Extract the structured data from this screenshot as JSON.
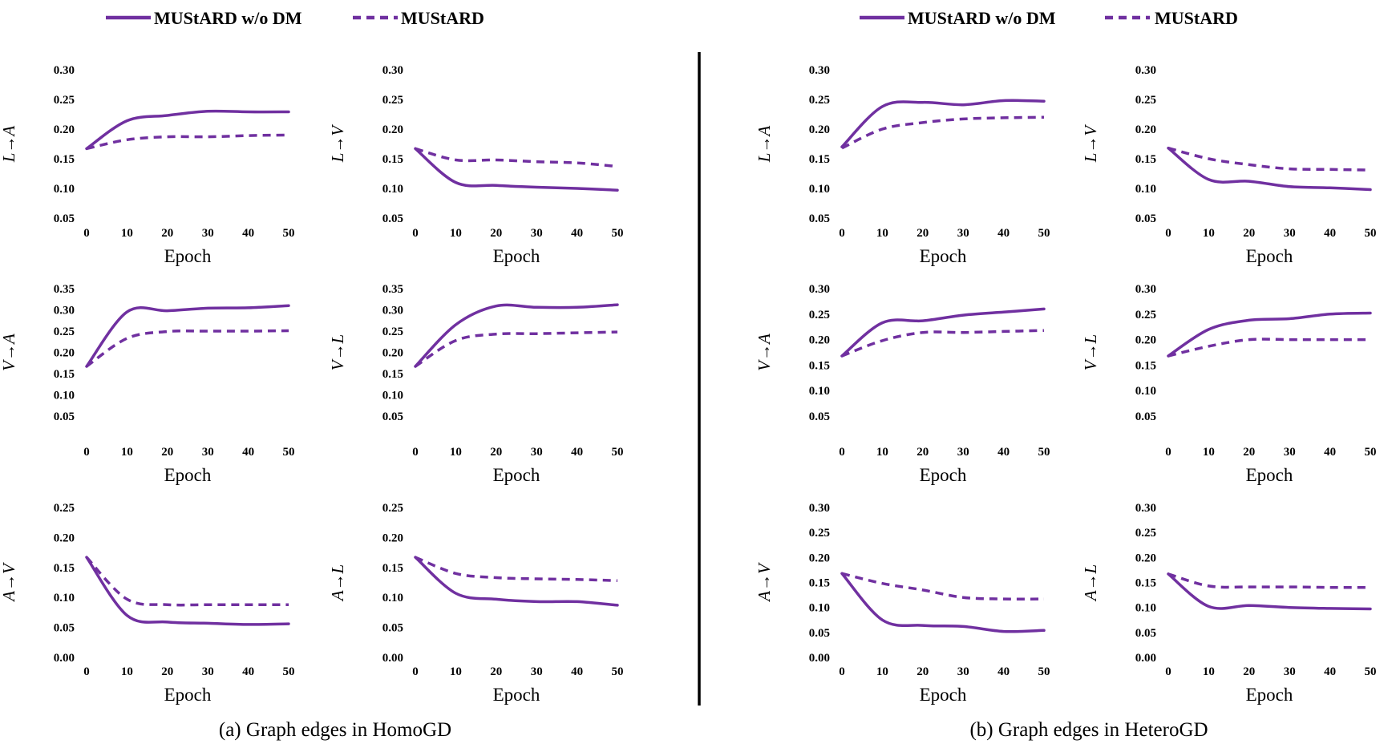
{
  "legend": {
    "solid": "MUStARD w/o DM",
    "dashed": "MUStARD"
  },
  "colors": {
    "series": "#7030a0"
  },
  "captions": {
    "a": "(a) Graph edges in HomoGD",
    "b": "(b) Graph edges in HeteroGD"
  },
  "chart_data": [
    {
      "type": "line",
      "group": "a",
      "ylabel": "L→A",
      "xlabel": "Epoch",
      "x": [
        0,
        10,
        20,
        30,
        40,
        50
      ],
      "ylim": [
        0.05,
        0.3
      ],
      "yticks": [
        "0.05",
        "0.10",
        "0.15",
        "0.20",
        "0.25",
        "0.30"
      ],
      "series": [
        {
          "name": "MUStARD w/o DM",
          "style": "solid",
          "values": [
            0.167,
            0.214,
            0.223,
            0.23,
            0.229,
            0.229
          ]
        },
        {
          "name": "MUStARD",
          "style": "dashed",
          "values": [
            0.167,
            0.182,
            0.187,
            0.187,
            0.189,
            0.19
          ]
        }
      ]
    },
    {
      "type": "line",
      "group": "a",
      "ylabel": "L→V",
      "xlabel": "Epoch",
      "x": [
        0,
        10,
        20,
        30,
        40,
        50
      ],
      "ylim": [
        0.05,
        0.3
      ],
      "yticks": [
        "0.05",
        "0.10",
        "0.15",
        "0.20",
        "0.25",
        "0.30"
      ],
      "series": [
        {
          "name": "MUStARD w/o DM",
          "style": "solid",
          "values": [
            0.167,
            0.11,
            0.105,
            0.102,
            0.1,
            0.097
          ]
        },
        {
          "name": "MUStARD",
          "style": "dashed",
          "values": [
            0.167,
            0.148,
            0.148,
            0.145,
            0.143,
            0.137
          ]
        }
      ]
    },
    {
      "type": "line",
      "group": "b",
      "ylabel": "L→A",
      "xlabel": "Epoch",
      "x": [
        0,
        10,
        20,
        30,
        40,
        50
      ],
      "ylim": [
        0.05,
        0.3
      ],
      "yticks": [
        "0.05",
        "0.10",
        "0.15",
        "0.20",
        "0.25",
        "0.30"
      ],
      "series": [
        {
          "name": "MUStARD w/o DM",
          "style": "solid",
          "values": [
            0.17,
            0.238,
            0.245,
            0.241,
            0.248,
            0.247
          ]
        },
        {
          "name": "MUStARD",
          "style": "dashed",
          "values": [
            0.168,
            0.2,
            0.211,
            0.217,
            0.219,
            0.22
          ]
        }
      ]
    },
    {
      "type": "line",
      "group": "b",
      "ylabel": "L→V",
      "xlabel": "Epoch",
      "x": [
        0,
        10,
        20,
        30,
        40,
        50
      ],
      "ylim": [
        0.05,
        0.3
      ],
      "yticks": [
        "0.05",
        "0.10",
        "0.15",
        "0.20",
        "0.25",
        "0.30"
      ],
      "series": [
        {
          "name": "MUStARD w/o DM",
          "style": "solid",
          "values": [
            0.168,
            0.115,
            0.112,
            0.103,
            0.101,
            0.098
          ]
        },
        {
          "name": "MUStARD",
          "style": "dashed",
          "values": [
            0.168,
            0.15,
            0.14,
            0.133,
            0.132,
            0.131
          ]
        }
      ]
    },
    {
      "type": "line",
      "group": "a",
      "ylabel": "V→A",
      "xlabel": "Epoch",
      "x": [
        0,
        10,
        20,
        30,
        40,
        50
      ],
      "ylim": [
        0.05,
        0.35
      ],
      "yticks": [
        "0.05",
        "0.10",
        "0.15",
        "0.20",
        "0.25",
        "0.30",
        "0.35"
      ],
      "series": [
        {
          "name": "MUStARD w/o DM",
          "style": "solid",
          "values": [
            0.167,
            0.295,
            0.298,
            0.304,
            0.305,
            0.31
          ]
        },
        {
          "name": "MUStARD",
          "style": "dashed",
          "values": [
            0.167,
            0.233,
            0.249,
            0.25,
            0.25,
            0.251
          ]
        }
      ]
    },
    {
      "type": "line",
      "group": "a",
      "ylabel": "V→L",
      "xlabel": "Epoch",
      "x": [
        0,
        10,
        20,
        30,
        40,
        50
      ],
      "ylim": [
        0.05,
        0.35
      ],
      "yticks": [
        "0.05",
        "0.10",
        "0.15",
        "0.20",
        "0.25",
        "0.30",
        "0.35"
      ],
      "series": [
        {
          "name": "MUStARD w/o DM",
          "style": "solid",
          "values": [
            0.167,
            0.265,
            0.309,
            0.306,
            0.306,
            0.312
          ]
        },
        {
          "name": "MUStARD",
          "style": "dashed",
          "values": [
            0.167,
            0.228,
            0.243,
            0.244,
            0.246,
            0.248
          ]
        }
      ]
    },
    {
      "type": "line",
      "group": "b",
      "ylabel": "V→A",
      "xlabel": "Epoch",
      "x": [
        0,
        10,
        20,
        30,
        40,
        50
      ],
      "ylim": [
        0.05,
        0.3
      ],
      "yticks": [
        "0.05",
        "0.10",
        "0.15",
        "0.20",
        "0.25",
        "0.30"
      ],
      "series": [
        {
          "name": "MUStARD w/o DM",
          "style": "solid",
          "values": [
            0.168,
            0.233,
            0.237,
            0.248,
            0.254,
            0.26
          ]
        },
        {
          "name": "MUStARD",
          "style": "dashed",
          "values": [
            0.168,
            0.198,
            0.214,
            0.214,
            0.216,
            0.218
          ]
        }
      ]
    },
    {
      "type": "line",
      "group": "b",
      "ylabel": "V→L",
      "xlabel": "Epoch",
      "x": [
        0,
        10,
        20,
        30,
        40,
        50
      ],
      "ylim": [
        0.05,
        0.3
      ],
      "yticks": [
        "0.05",
        "0.10",
        "0.15",
        "0.20",
        "0.25",
        "0.30"
      ],
      "series": [
        {
          "name": "MUStARD w/o DM",
          "style": "solid",
          "values": [
            0.168,
            0.22,
            0.238,
            0.241,
            0.25,
            0.252
          ]
        },
        {
          "name": "MUStARD",
          "style": "dashed",
          "values": [
            0.168,
            0.187,
            0.2,
            0.2,
            0.2,
            0.2
          ]
        }
      ]
    },
    {
      "type": "line",
      "group": "a",
      "ylabel": "A→V",
      "xlabel": "Epoch",
      "x": [
        0,
        10,
        20,
        30,
        40,
        50
      ],
      "ylim": [
        0.0,
        0.25
      ],
      "yticks": [
        "0.00",
        "0.05",
        "0.10",
        "0.15",
        "0.20",
        "0.25"
      ],
      "series": [
        {
          "name": "MUStARD w/o DM",
          "style": "solid",
          "values": [
            0.167,
            0.07,
            0.059,
            0.057,
            0.055,
            0.056
          ]
        },
        {
          "name": "MUStARD",
          "style": "dashed",
          "values": [
            0.167,
            0.097,
            0.088,
            0.088,
            0.088,
            0.088
          ]
        }
      ]
    },
    {
      "type": "line",
      "group": "a",
      "ylabel": "A→L",
      "xlabel": "Epoch",
      "x": [
        0,
        10,
        20,
        30,
        40,
        50
      ],
      "ylim": [
        0.0,
        0.25
      ],
      "yticks": [
        "0.00",
        "0.05",
        "0.10",
        "0.15",
        "0.20",
        "0.25"
      ],
      "series": [
        {
          "name": "MUStARD w/o DM",
          "style": "solid",
          "values": [
            0.167,
            0.107,
            0.097,
            0.093,
            0.093,
            0.087
          ]
        },
        {
          "name": "MUStARD",
          "style": "dashed",
          "values": [
            0.167,
            0.14,
            0.133,
            0.131,
            0.13,
            0.128
          ]
        }
      ]
    },
    {
      "type": "line",
      "group": "b",
      "ylabel": "A→V",
      "xlabel": "Epoch",
      "x": [
        0,
        10,
        20,
        30,
        40,
        50
      ],
      "ylim": [
        0.0,
        0.3
      ],
      "yticks": [
        "0.00",
        "0.05",
        "0.10",
        "0.15",
        "0.20",
        "0.25",
        "0.30"
      ],
      "series": [
        {
          "name": "MUStARD w/o DM",
          "style": "solid",
          "values": [
            0.168,
            0.075,
            0.064,
            0.062,
            0.052,
            0.054
          ]
        },
        {
          "name": "MUStARD",
          "style": "dashed",
          "values": [
            0.168,
            0.148,
            0.135,
            0.12,
            0.117,
            0.117
          ]
        }
      ]
    },
    {
      "type": "line",
      "group": "b",
      "ylabel": "A→L",
      "xlabel": "Epoch",
      "x": [
        0,
        10,
        20,
        30,
        40,
        50
      ],
      "ylim": [
        0.0,
        0.3
      ],
      "yticks": [
        "0.00",
        "0.05",
        "0.10",
        "0.15",
        "0.20",
        "0.25",
        "0.30"
      ],
      "series": [
        {
          "name": "MUStARD w/o DM",
          "style": "solid",
          "values": [
            0.167,
            0.102,
            0.104,
            0.1,
            0.098,
            0.097
          ]
        },
        {
          "name": "MUStARD",
          "style": "dashed",
          "values": [
            0.167,
            0.143,
            0.141,
            0.141,
            0.14,
            0.14
          ]
        }
      ]
    }
  ]
}
